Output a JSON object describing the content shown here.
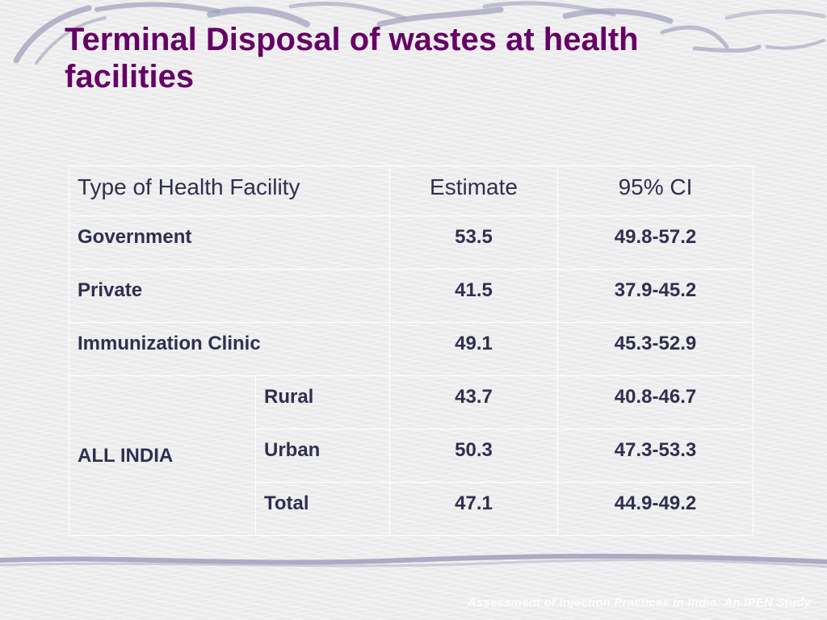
{
  "slide": {
    "title": "Terminal Disposal of wastes at health facilities",
    "footer": "Assessment of Injection Practices in India: An IPEN Study"
  },
  "table": {
    "headers": {
      "type": "Type of Health Facility",
      "estimate": "Estimate",
      "ci": "95% CI"
    },
    "rows": [
      {
        "label": "Government",
        "estimate": "53.5",
        "ci": "49.8-57.2"
      },
      {
        "label": "Private",
        "estimate": "41.5",
        "ci": "37.9-45.2"
      },
      {
        "label": "Immunization Clinic",
        "estimate": "49.1",
        "ci": "45.3-52.9"
      }
    ],
    "group": {
      "label": "ALL INDIA",
      "rows": [
        {
          "label": "Rural",
          "estimate": "43.7",
          "ci": "40.8-46.7"
        },
        {
          "label": "Urban",
          "estimate": "50.3",
          "ci": "47.3-53.3"
        },
        {
          "label": "Total",
          "estimate": "47.1",
          "ci": "44.9-49.2"
        }
      ]
    }
  },
  "colors": {
    "title": "#660066",
    "text": "#2f2f4f",
    "decor": "#9a9ab8"
  }
}
